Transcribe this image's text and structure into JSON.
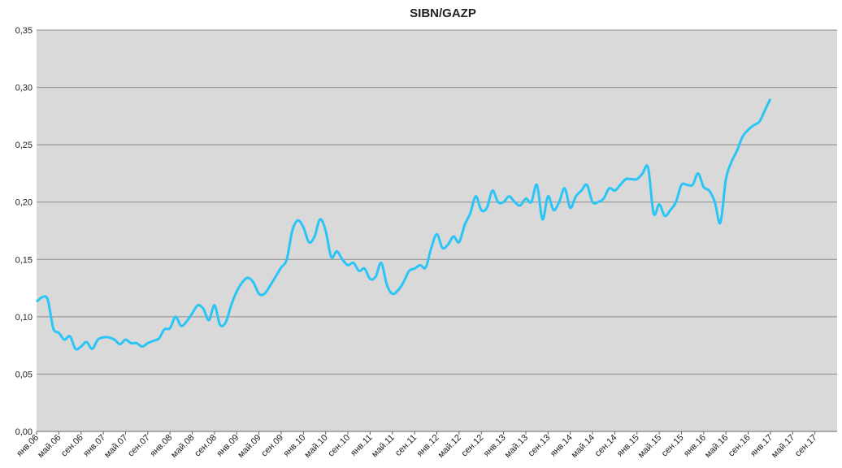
{
  "chart_data": {
    "type": "line",
    "title": "SIBN/GAZP",
    "categories": [
      "янв.06",
      null,
      null,
      null,
      "май.06",
      null,
      null,
      null,
      "сен.06",
      null,
      null,
      null,
      "янв.07",
      null,
      null,
      null,
      "май.07",
      null,
      null,
      null,
      "сен.07",
      null,
      null,
      null,
      "янв.08",
      null,
      null,
      null,
      "май.08",
      null,
      null,
      null,
      "сен.08",
      null,
      null,
      null,
      "янв.09",
      null,
      null,
      null,
      "май.09",
      null,
      null,
      null,
      "сен.09",
      null,
      null,
      null,
      "янв.10",
      null,
      null,
      null,
      "май.10",
      null,
      null,
      null,
      "сен.10",
      null,
      null,
      null,
      "янв.11",
      null,
      null,
      null,
      "май.11",
      null,
      null,
      null,
      "сен.11",
      null,
      null,
      null,
      "янв.12",
      null,
      null,
      null,
      "май.12",
      null,
      null,
      null,
      "сен.12",
      null,
      null,
      null,
      "янв.13",
      null,
      null,
      null,
      "май.13",
      null,
      null,
      null,
      "сен.13",
      null,
      null,
      null,
      "янв.14",
      null,
      null,
      null,
      "май.14",
      null,
      null,
      null,
      "сен.14",
      null,
      null,
      null,
      "янв.15",
      null,
      null,
      null,
      "май.15",
      null,
      null,
      null,
      "сен.15",
      null,
      null,
      null,
      "янв.16",
      null,
      null,
      null,
      "май.16",
      null,
      null,
      null,
      "сен.16",
      null,
      null,
      null,
      "янв.17",
      null,
      null,
      null,
      "май.17",
      null,
      null,
      null,
      "сен.17",
      null,
      null,
      null
    ],
    "series": [
      {
        "color": "#29c5f6",
        "values": [
          0.113,
          0.117,
          0.115,
          0.09,
          0.086,
          0.08,
          0.083,
          0.072,
          0.074,
          0.078,
          0.072,
          0.08,
          0.082,
          0.082,
          0.08,
          0.076,
          0.08,
          0.077,
          0.077,
          0.074,
          0.077,
          0.079,
          0.081,
          0.089,
          0.09,
          0.1,
          0.092,
          0.096,
          0.103,
          0.11,
          0.107,
          0.097,
          0.11,
          0.093,
          0.095,
          0.11,
          0.122,
          0.13,
          0.134,
          0.13,
          0.12,
          0.12,
          0.127,
          0.135,
          0.143,
          0.15,
          0.175,
          0.184,
          0.178,
          0.165,
          0.17,
          0.185,
          0.175,
          0.152,
          0.157,
          0.15,
          0.145,
          0.147,
          0.14,
          0.142,
          0.133,
          0.135,
          0.147,
          0.128,
          0.12,
          0.123,
          0.13,
          0.14,
          0.142,
          0.145,
          0.143,
          0.16,
          0.172,
          0.16,
          0.163,
          0.17,
          0.165,
          0.18,
          0.19,
          0.205,
          0.193,
          0.195,
          0.21,
          0.2,
          0.2,
          0.205,
          0.2,
          0.197,
          0.203,
          0.2,
          0.215,
          0.185,
          0.205,
          0.193,
          0.2,
          0.212,
          0.195,
          0.205,
          0.21,
          0.215,
          0.2,
          0.2,
          0.203,
          0.212,
          0.21,
          0.215,
          0.22,
          0.22,
          0.22,
          0.225,
          0.23,
          0.19,
          0.198,
          0.188,
          0.193,
          0.2,
          0.215,
          0.215,
          0.215,
          0.225,
          0.213,
          0.21,
          0.2,
          0.182,
          0.22,
          0.235,
          0.245,
          0.257,
          0.263,
          0.267,
          0.27,
          0.28,
          0.29,
          null,
          null,
          null,
          null,
          null,
          null,
          null,
          null,
          null,
          null,
          null
        ]
      }
    ],
    "ylim": [
      0,
      0.35
    ],
    "yticks": [
      {
        "value": 0,
        "label": "0,00"
      },
      {
        "value": 0.05,
        "label": "0,05"
      },
      {
        "value": 0.1,
        "label": "0,10"
      },
      {
        "value": 0.15,
        "label": "0,15"
      },
      {
        "value": 0.2,
        "label": "0,20"
      },
      {
        "value": 0.25,
        "label": "0,25"
      },
      {
        "value": 0.3,
        "label": "0,30"
      },
      {
        "value": 0.35,
        "label": "0,35"
      }
    ],
    "grid": true
  }
}
